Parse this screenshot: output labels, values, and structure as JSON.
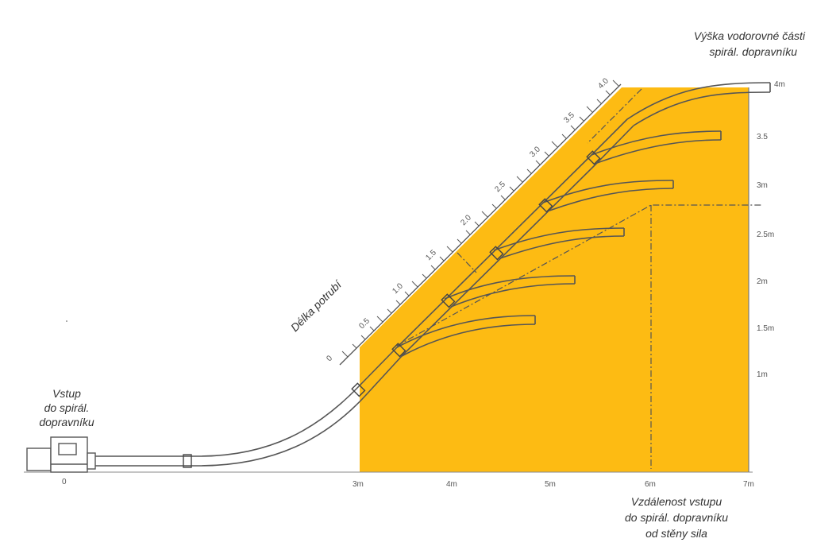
{
  "title_top": {
    "line1": "Výška vodorovné části",
    "line2": "spirál. dopravníku"
  },
  "label_inlet": {
    "line1": "Vstup",
    "line2": "do spirál.",
    "line3": "dopravníku"
  },
  "label_distance": {
    "line1": "Vzdálenost vstupu",
    "line2": "do spirál. dopravníku",
    "line3": "od stěny sila"
  },
  "label_pipe_length": "Délka potrubí",
  "x_axis": {
    "origin": "0",
    "ticks": [
      "3m",
      "4m",
      "5m",
      "6m",
      "7m"
    ]
  },
  "y_axis": {
    "ticks": [
      "1m",
      "1.5m",
      "2m",
      "2.5m",
      "3m",
      "3.5",
      "4m"
    ]
  },
  "diag_scale": {
    "ticks": [
      "0",
      "0.5",
      "1.0",
      "1.5",
      "2.0",
      "2.5",
      "3.0",
      "3.5",
      "4.0"
    ]
  },
  "colors": {
    "silo": "#FDBB13",
    "pipe": "#555555",
    "axis": "#777777"
  }
}
